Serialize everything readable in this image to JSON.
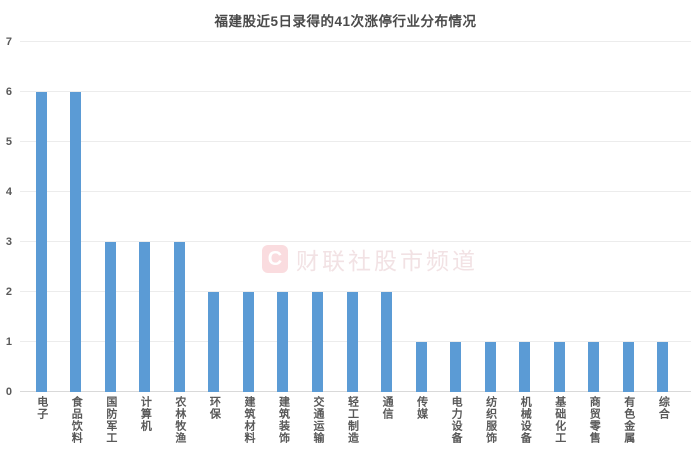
{
  "title": "福建股近5日录得的41次涨停行业分布情况",
  "watermark": {
    "logo_letter": "C",
    "text": "财联社股市频道"
  },
  "colors": {
    "bar": "#5b9bd5",
    "gridline": "#ececec",
    "axis_baseline": "#d9d9d9",
    "title_text": "#4a4a4a",
    "axis_text": "#595959",
    "watermark_logo_bg": "#fadcdf",
    "watermark_text": "#f2e2e4"
  },
  "chart_data": {
    "type": "bar",
    "title": "福建股近5日录得的41次涨停行业分布情况",
    "categories": [
      "电子",
      "食品饮料",
      "国防军工",
      "计算机",
      "农林牧渔",
      "环保",
      "建筑材料",
      "建筑装饰",
      "交通运输",
      "轻工制造",
      "通信",
      "传媒",
      "电力设备",
      "纺织服饰",
      "机械设备",
      "基础化工",
      "商贸零售",
      "有色金属",
      "综合"
    ],
    "values": [
      6,
      6,
      3,
      3,
      3,
      2,
      2,
      2,
      2,
      2,
      2,
      1,
      1,
      1,
      1,
      1,
      1,
      1,
      1
    ],
    "total": 41,
    "xlabel": "",
    "ylabel": "",
    "ylim": [
      0,
      7
    ],
    "y_ticks": [
      0,
      1,
      2,
      3,
      4,
      5,
      6,
      7
    ],
    "grid": true,
    "legend": false,
    "bar_orientation": "vertical",
    "x_label_orientation": "vertical"
  }
}
